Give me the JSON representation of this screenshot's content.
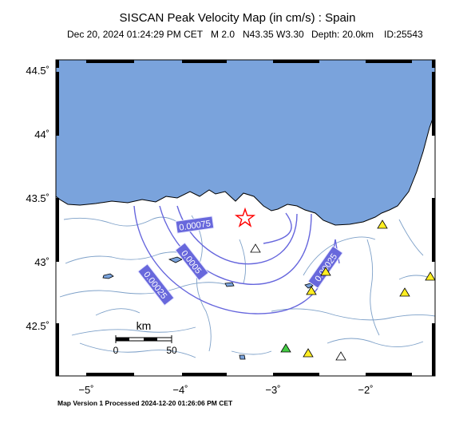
{
  "title": "SISCAN Peak Velocity Map (in cm/s) : Spain",
  "subtitle": {
    "date": "Dec 20, 2024 01:24:29 PM CET",
    "magnitude": "M 2.0",
    "location": "N43.35 W3.30",
    "depth": "Depth: 20.0km",
    "id": "ID:25543"
  },
  "footer": "Map Version 1 Processed 2024-12-20 01:26:06 PM CET",
  "axes": {
    "lat_ticks": [
      "44.5˚",
      "44˚",
      "43.5˚",
      "43˚",
      "42.5˚"
    ],
    "lon_ticks": [
      "−5˚",
      "−4˚",
      "−3˚",
      "−2˚"
    ]
  },
  "contour_labels": [
    "0.00075",
    "0.0005",
    "0.00025",
    "0.00025"
  ],
  "scale_bar": {
    "title": "km",
    "start": "0",
    "end": "50"
  },
  "colors": {
    "sea": "#7aa3dc",
    "contour": "#6666dd",
    "label_bg": "#6868dc",
    "station_yellow": "#ffee22",
    "station_green": "#44cc44",
    "station_white": "#ffffff",
    "epicenter": "#ff0000"
  },
  "icons": {
    "epicenter": "star-icon",
    "station": "triangle-icon"
  }
}
